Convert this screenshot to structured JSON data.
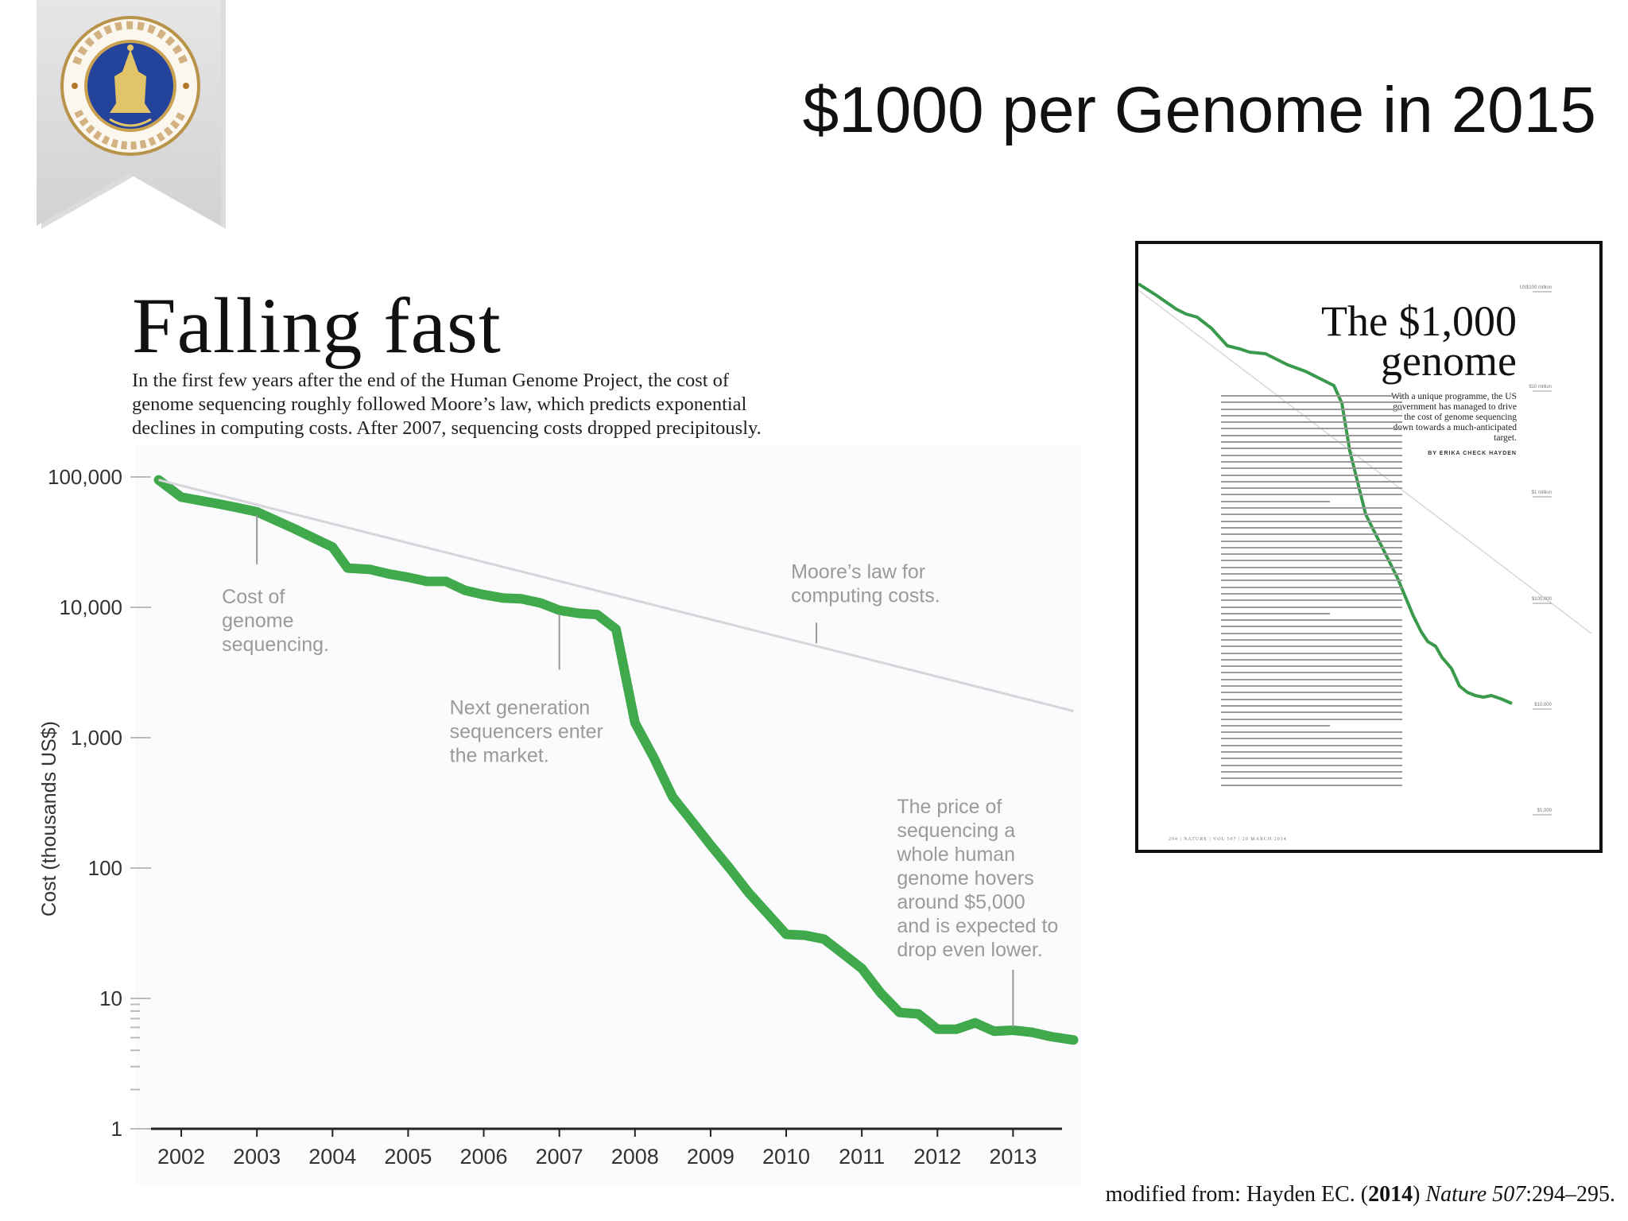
{
  "slide": {
    "title": "$1000 per Genome in 2015",
    "logo_text": "อดตาน์ อุปม์ กร มหาวิทยาลัยมหิดล"
  },
  "chart_heading": "Falling fast",
  "chart_intro": [
    "In the first few years after the end of the Human Genome Project, the cost of",
    "genome sequencing roughly followed Moore’s law, which predicts exponential",
    "declines in computing costs. After 2007, sequencing costs dropped precipitously."
  ],
  "chart_data": {
    "type": "line",
    "yscale": "log",
    "ylabel": "Cost (thousands US$)",
    "xlabel": "",
    "ylim": [
      1,
      100000
    ],
    "xlim": [
      2001.6,
      2013.9
    ],
    "y_ticks": [
      {
        "v": 1,
        "label": "1"
      },
      {
        "v": 10,
        "label": "10"
      },
      {
        "v": 100,
        "label": "100"
      },
      {
        "v": 1000,
        "label": "1,000"
      },
      {
        "v": 10000,
        "label": "10,000"
      },
      {
        "v": 100000,
        "label": "100,000"
      }
    ],
    "x_ticks": [
      "2002",
      "2003",
      "2004",
      "2005",
      "2006",
      "2007",
      "2008",
      "2009",
      "2010",
      "2011",
      "2012",
      "2013"
    ],
    "colors": {
      "sequencing": "#3fa94b",
      "moore": "#d6d6da"
    },
    "series": [
      {
        "key": "sequencing",
        "x": [
          2001.7,
          2002.0,
          2002.5,
          2002.75,
          2003.0,
          2003.5,
          2003.75,
          2004.0,
          2004.2,
          2004.5,
          2004.75,
          2005.0,
          2005.25,
          2005.5,
          2005.75,
          2006.0,
          2006.25,
          2006.5,
          2006.75,
          2007.0,
          2007.25,
          2007.5,
          2007.75,
          2008.0,
          2008.25,
          2008.5,
          2008.75,
          2009.0,
          2009.25,
          2009.5,
          2009.75,
          2010.0,
          2010.25,
          2010.5,
          2010.75,
          2011.0,
          2011.25,
          2011.5,
          2011.75,
          2012.0,
          2012.25,
          2012.5,
          2012.75,
          2013.0,
          2013.25,
          2013.5,
          2013.8
        ],
        "values": [
          95000,
          70000,
          62000,
          58000,
          54000,
          40000,
          34000,
          29000,
          20000,
          19500,
          18000,
          17000,
          15800,
          15800,
          13500,
          12500,
          11800,
          11600,
          10800,
          9500,
          9000,
          8800,
          6800,
          1300,
          700,
          350,
          230,
          150,
          100,
          65,
          45,
          31,
          30.5,
          28.5,
          22,
          17,
          11,
          7.8,
          7.6,
          5.8,
          5.8,
          6.5,
          5.6,
          5.7,
          5.5,
          5.1,
          4.8
        ]
      },
      {
        "key": "moore",
        "x": [
          2001.7,
          2013.8
        ],
        "values": [
          95000,
          1600
        ]
      }
    ],
    "annotations": [
      {
        "lines": [
          "Cost of",
          "genome",
          "sequencing."
        ],
        "at": [
          2003.0,
          54000
        ]
      },
      {
        "lines": [
          "Moore’s law for",
          "computing costs."
        ],
        "at": [
          2010.4,
          5000
        ]
      },
      {
        "lines": [
          "Next generation",
          "sequencers enter",
          "the market."
        ],
        "at": [
          2007.0,
          9400
        ]
      },
      {
        "lines": [
          "The price of",
          "sequencing a",
          "whole human",
          "genome hovers",
          "around $5,000",
          "and is expected to",
          "drop even lower."
        ],
        "at": [
          2013.0,
          5.7
        ]
      }
    ]
  },
  "thumbnail": {
    "title_line1": "The $1,000",
    "title_line2": "genome",
    "deck": "With a unique programme, the US government has managed to drive the cost of genome sequencing down towards a much-anticipated target.",
    "byline": "BY ERIKA CHECK HAYDEN",
    "axis_labels": [
      "US$100 million",
      "$10 million",
      "$1 million",
      "$100,000",
      "$10,000",
      "$1,000"
    ],
    "footer": "294 | NATURE | VOL 507 | 20 MARCH 2014"
  },
  "credit": {
    "prefix": "modified from: Hayden EC. (",
    "year": "2014",
    "mid": ") ",
    "journal": "Nature",
    "volume": " 507",
    "pages": ":294–295."
  }
}
